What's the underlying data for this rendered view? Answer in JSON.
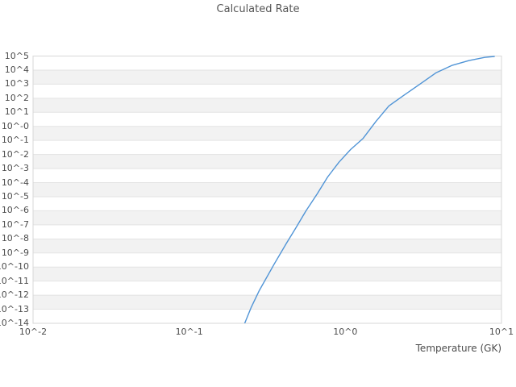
{
  "chart_data": {
    "type": "line",
    "title": "Calculated Rate",
    "xlabel": "Temperature (GK)",
    "ylabel": "",
    "xscale": "log",
    "yscale": "log",
    "xlim_log10": [
      -2,
      1
    ],
    "ylim_log10": [
      -14,
      5
    ],
    "grid": "horizontal-only",
    "legend": "none",
    "x_tick_labels": [
      "10^-2",
      "10^-1",
      "10^0",
      "10^1"
    ],
    "y_tick_labels": [
      "10^5",
      "10^4",
      "10^3",
      "10^2",
      "10^1",
      "10^-0",
      "10^-1",
      "10^-2",
      "10^-3",
      "10^-4",
      "10^-5",
      "10^-6",
      "10^-7",
      "10^-8",
      "10^-9",
      "10^-10",
      "10^-11",
      "10^-12",
      "10^-13",
      "10^-14"
    ],
    "series": [
      {
        "name": "calculated-rate",
        "color": "#5094d6",
        "points_T_log10rate": [
          [
            0.221,
            -14.3
          ],
          [
            0.25,
            -12.85
          ],
          [
            0.28,
            -11.7
          ],
          [
            0.35,
            -9.8
          ],
          [
            0.42,
            -8.3
          ],
          [
            0.48,
            -7.25
          ],
          [
            0.56,
            -6.0
          ],
          [
            0.66,
            -4.8
          ],
          [
            0.77,
            -3.6
          ],
          [
            0.91,
            -2.55
          ],
          [
            1.08,
            -1.65
          ],
          [
            1.3,
            -0.85
          ],
          [
            1.57,
            0.35
          ],
          [
            1.9,
            1.45
          ],
          [
            2.35,
            2.18
          ],
          [
            3.0,
            3.0
          ],
          [
            3.8,
            3.8
          ],
          [
            4.8,
            4.33
          ],
          [
            6.2,
            4.68
          ],
          [
            7.8,
            4.9
          ],
          [
            9.0,
            4.97
          ]
        ]
      }
    ],
    "colors": {
      "band_fill": "#f2f2f2",
      "gridline": "#e3e3e3",
      "plot_border": "#d7d7d7",
      "line": "#5094d6",
      "tick_text": "#4d4d4d",
      "title_text": "#555555"
    }
  }
}
